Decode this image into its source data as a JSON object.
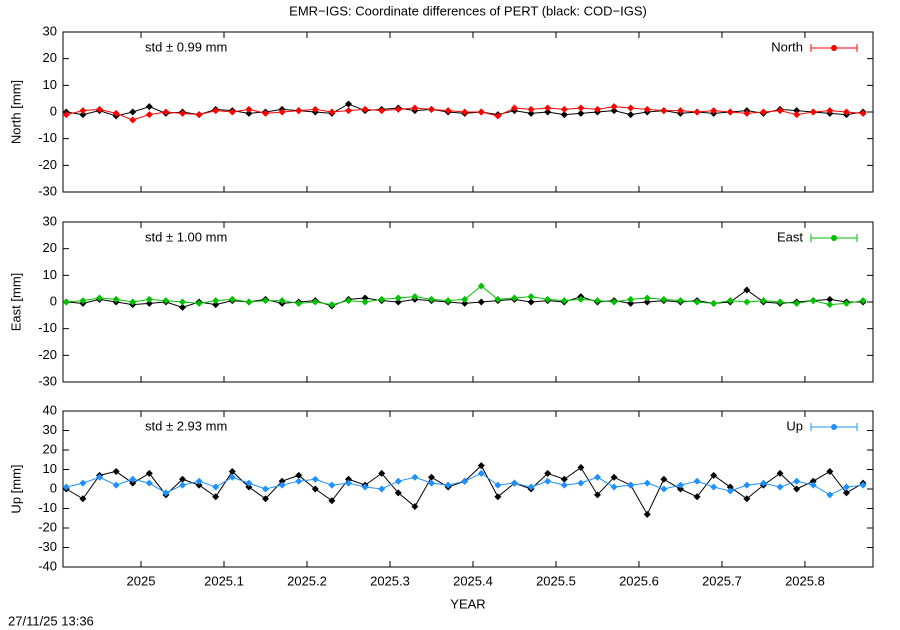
{
  "title": "EMR−IGS: Coordinate differences of PERT (black: COD−IGS)",
  "x_label": "YEAR",
  "footer": "27/11/25 13:36",
  "chart_data": [
    {
      "type": "line",
      "y_label": "North [mm]",
      "annotation": "std ± 0.99 mm",
      "legend": "upper right",
      "xlim": [
        2024.906,
        2025.882
      ],
      "xticks": [
        2025,
        2025.1,
        2025.2,
        2025.3,
        2025.4,
        2025.5,
        2025.6,
        2025.7,
        2025.8
      ],
      "ylim": [
        -30,
        30
      ],
      "yticks": [
        -30,
        -20,
        -10,
        0,
        10,
        20,
        30
      ],
      "x": [
        2024.91,
        2024.93,
        2024.95,
        2024.97,
        2024.99,
        2025.01,
        2025.03,
        2025.05,
        2025.07,
        2025.09,
        2025.11,
        2025.13,
        2025.15,
        2025.17,
        2025.19,
        2025.21,
        2025.23,
        2025.25,
        2025.27,
        2025.29,
        2025.31,
        2025.33,
        2025.35,
        2025.37,
        2025.39,
        2025.41,
        2025.43,
        2025.45,
        2025.47,
        2025.49,
        2025.51,
        2025.53,
        2025.55,
        2025.57,
        2025.59,
        2025.61,
        2025.63,
        2025.65,
        2025.67,
        2025.69,
        2025.71,
        2025.73,
        2025.75,
        2025.77,
        2025.79,
        2025.81,
        2025.83,
        2025.85,
        2025.87
      ],
      "series": [
        {
          "color": "#000000",
          "values": [
            0,
            -1,
            0.5,
            -1.5,
            0,
            2,
            -0.5,
            0,
            -1,
            1,
            0.5,
            -0.5,
            0,
            1,
            0.5,
            0,
            -0.5,
            3,
            0.5,
            1,
            1.5,
            0.5,
            1,
            0,
            -0.5,
            0,
            -1,
            0.5,
            -0.5,
            0,
            -1,
            -0.5,
            0,
            0.5,
            -1,
            0,
            0.5,
            -0.5,
            0,
            -0.5,
            0,
            0.5,
            -0.5,
            1,
            0.5,
            0,
            -0.5,
            -1,
            0
          ]
        },
        {
          "name": "North",
          "color": "#ff0000",
          "values": [
            -1,
            0.5,
            1,
            -0.5,
            -3,
            -1,
            0,
            -0.5,
            -1,
            0.5,
            0,
            1,
            -0.5,
            0,
            0.5,
            1,
            0,
            0.5,
            1,
            0.5,
            1,
            1.5,
            1,
            0.5,
            0,
            0,
            -1.5,
            1.5,
            1,
            1.5,
            1,
            1.5,
            1,
            2,
            1.5,
            1,
            0.5,
            0.5,
            0,
            0.5,
            0,
            -0.5,
            0,
            0.5,
            -1,
            0,
            0.5,
            0,
            -0.5
          ]
        }
      ]
    },
    {
      "type": "line",
      "y_label": "East [mm]",
      "annotation": "std ± 1.00 mm",
      "legend": "upper right",
      "xlim": [
        2024.906,
        2025.882
      ],
      "xticks": [
        2025,
        2025.1,
        2025.2,
        2025.3,
        2025.4,
        2025.5,
        2025.6,
        2025.7,
        2025.8
      ],
      "ylim": [
        -30,
        30
      ],
      "yticks": [
        -30,
        -20,
        -10,
        0,
        10,
        20,
        30
      ],
      "x": [
        2024.91,
        2024.93,
        2024.95,
        2024.97,
        2024.99,
        2025.01,
        2025.03,
        2025.05,
        2025.07,
        2025.09,
        2025.11,
        2025.13,
        2025.15,
        2025.17,
        2025.19,
        2025.21,
        2025.23,
        2025.25,
        2025.27,
        2025.29,
        2025.31,
        2025.33,
        2025.35,
        2025.37,
        2025.39,
        2025.41,
        2025.43,
        2025.45,
        2025.47,
        2025.49,
        2025.51,
        2025.53,
        2025.55,
        2025.57,
        2025.59,
        2025.61,
        2025.63,
        2025.65,
        2025.67,
        2025.69,
        2025.71,
        2025.73,
        2025.75,
        2025.77,
        2025.79,
        2025.81,
        2025.83,
        2025.85,
        2025.87
      ],
      "series": [
        {
          "color": "#000000",
          "values": [
            0,
            -0.5,
            1,
            0,
            -1,
            -0.5,
            0,
            -2,
            0,
            -1,
            0.5,
            0,
            1,
            -0.5,
            0,
            0.5,
            -1.5,
            1,
            1.5,
            0.5,
            0,
            1,
            0.5,
            0,
            -0.5,
            0,
            0.5,
            1,
            0,
            0.5,
            0,
            2,
            0,
            0.5,
            -0.5,
            0,
            0.5,
            0,
            0.5,
            -0.5,
            0,
            4.5,
            0,
            -0.5,
            0,
            0.5,
            1,
            0,
            0
          ]
        },
        {
          "name": "East",
          "color": "#00c000",
          "values": [
            0,
            0.5,
            1.5,
            1,
            0,
            1,
            0.5,
            0,
            -0.5,
            0.5,
            1,
            0,
            0.5,
            0.5,
            -0.5,
            0,
            -1,
            0.5,
            0,
            1,
            1.5,
            2,
            1,
            0.5,
            1,
            6,
            1,
            1.5,
            2,
            1,
            0.5,
            1,
            0.5,
            0,
            1,
            1.5,
            1,
            0.5,
            0,
            -0.5,
            0.5,
            0,
            0.5,
            0,
            -0.5,
            0.5,
            -1,
            -0.5,
            0.5
          ]
        }
      ]
    },
    {
      "type": "line",
      "y_label": "Up [mm]",
      "annotation": "std ± 2.93 mm",
      "legend": "upper right",
      "xlim": [
        2024.906,
        2025.882
      ],
      "xticks": [
        2025,
        2025.1,
        2025.2,
        2025.3,
        2025.4,
        2025.5,
        2025.6,
        2025.7,
        2025.8
      ],
      "ylim": [
        -40,
        40
      ],
      "yticks": [
        -40,
        -30,
        -20,
        -10,
        0,
        10,
        20,
        30,
        40
      ],
      "x": [
        2024.91,
        2024.93,
        2024.95,
        2024.97,
        2024.99,
        2025.01,
        2025.03,
        2025.05,
        2025.07,
        2025.09,
        2025.11,
        2025.13,
        2025.15,
        2025.17,
        2025.19,
        2025.21,
        2025.23,
        2025.25,
        2025.27,
        2025.29,
        2025.31,
        2025.33,
        2025.35,
        2025.37,
        2025.39,
        2025.41,
        2025.43,
        2025.45,
        2025.47,
        2025.49,
        2025.51,
        2025.53,
        2025.55,
        2025.57,
        2025.59,
        2025.61,
        2025.63,
        2025.65,
        2025.67,
        2025.69,
        2025.71,
        2025.73,
        2025.75,
        2025.77,
        2025.79,
        2025.81,
        2025.83,
        2025.85,
        2025.87
      ],
      "series": [
        {
          "color": "#000000",
          "values": [
            0,
            -5,
            7,
            9,
            3,
            8,
            -3,
            5,
            2,
            -4,
            9,
            1,
            -5,
            4,
            7,
            0,
            -6,
            5,
            2,
            8,
            -2,
            -9,
            6,
            1,
            4,
            12,
            -4,
            3,
            0,
            8,
            5,
            11,
            -3,
            6,
            2,
            -13,
            5,
            0,
            -4,
            7,
            1,
            -5,
            2,
            8,
            0,
            4,
            9,
            -2,
            3
          ]
        },
        {
          "name": "Up",
          "color": "#1e90ff",
          "values": [
            1,
            3,
            6,
            2,
            5,
            3,
            -2,
            2,
            4,
            1,
            6,
            3,
            0,
            2,
            4,
            5,
            2,
            3,
            1,
            0,
            4,
            6,
            3,
            2,
            4,
            8,
            2,
            3,
            1,
            4,
            2,
            3,
            6,
            1,
            2,
            3,
            0,
            2,
            4,
            1,
            -1,
            2,
            3,
            1,
            4,
            2,
            -3,
            1,
            2
          ]
        }
      ]
    }
  ]
}
